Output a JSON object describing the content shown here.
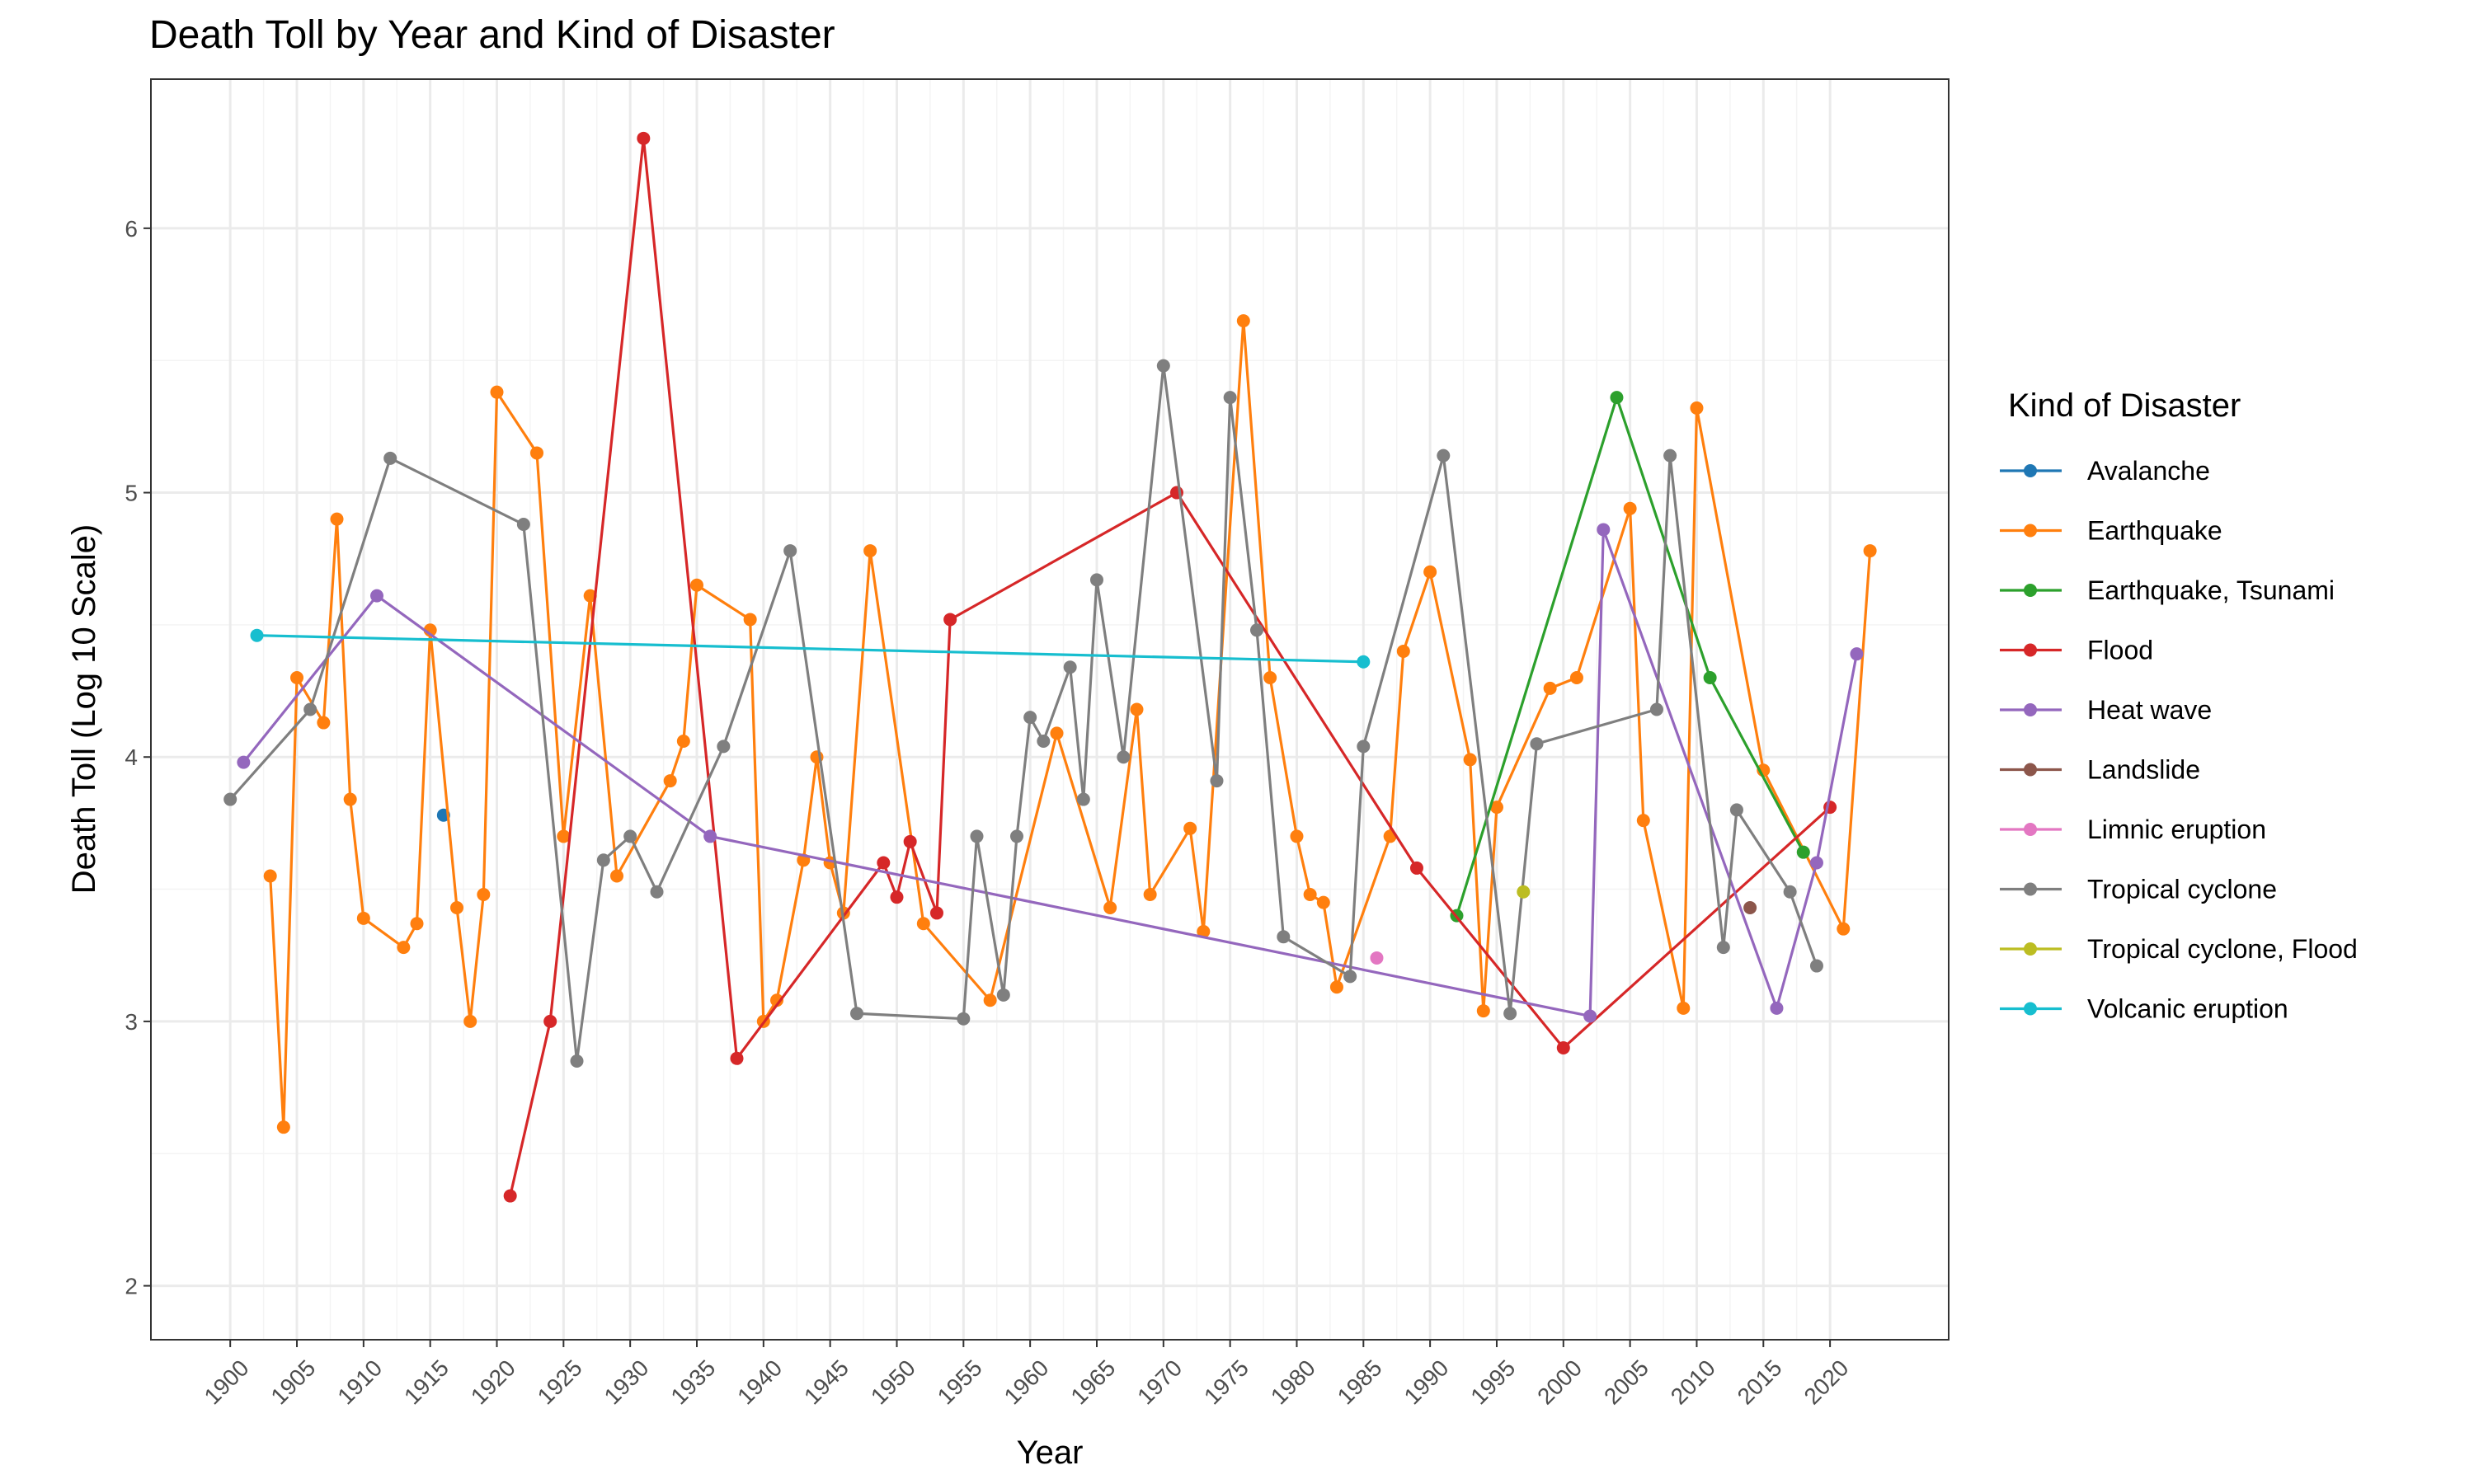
{
  "chart_data": {
    "type": "line",
    "title": "Death Toll by Year and Kind of Disaster",
    "x_label": "Year",
    "y_label": "Death Toll (Log 10 Scale)",
    "legend_title": "Kind of Disaster",
    "legend": "right",
    "grid": true,
    "xlim": [
      1894.05,
      2028.9
    ],
    "ylim": [
      1.796,
      6.564
    ],
    "xticks": [
      1900,
      1905,
      1910,
      1915,
      1920,
      1925,
      1930,
      1935,
      1940,
      1945,
      1950,
      1955,
      1960,
      1965,
      1970,
      1975,
      1980,
      1985,
      1990,
      1995,
      2000,
      2005,
      2010,
      2015,
      2020
    ],
    "yticks": [
      2,
      3,
      4,
      5,
      6
    ],
    "series": [
      {
        "name": "Avalanche",
        "color": "#1f77b4",
        "x": [
          1916
        ],
        "values": [
          3.78
        ]
      },
      {
        "name": "Earthquake",
        "color": "#ff7f0e",
        "x": [
          1903,
          1904,
          1905,
          1907,
          1908,
          1909,
          1910,
          1913,
          1914,
          1915,
          1917,
          1918,
          1919,
          1920,
          1923,
          1925,
          1927,
          1929,
          1933,
          1934,
          1935,
          1939,
          1940,
          1941,
          1943,
          1944,
          1945,
          1946,
          1948,
          1952,
          1957,
          1962,
          1966,
          1968,
          1969,
          1972,
          1973,
          1976,
          1978,
          1980,
          1981,
          1982,
          1983,
          1987,
          1988,
          1990,
          1993,
          1994,
          1995,
          1999,
          2001,
          2005,
          2006,
          2009,
          2010,
          2015,
          2021,
          2023
        ],
        "values": [
          3.55,
          2.6,
          4.3,
          4.13,
          4.9,
          3.84,
          3.39,
          3.28,
          3.37,
          4.48,
          3.43,
          3.0,
          3.48,
          5.38,
          5.15,
          3.7,
          4.61,
          3.55,
          3.91,
          4.06,
          4.65,
          4.52,
          3.0,
          3.08,
          3.61,
          4.0,
          3.6,
          3.41,
          4.78,
          3.37,
          3.08,
          4.09,
          3.43,
          4.18,
          3.48,
          3.73,
          3.34,
          5.65,
          4.3,
          3.7,
          3.48,
          3.45,
          3.13,
          3.7,
          4.4,
          4.7,
          3.99,
          3.04,
          3.81,
          4.26,
          4.3,
          4.94,
          3.76,
          3.05,
          5.32,
          3.95,
          3.35,
          4.78
        ]
      },
      {
        "name": "Earthquake, Tsunami",
        "color": "#2ca02c",
        "x": [
          1992,
          2004,
          2011,
          2018
        ],
        "values": [
          3.4,
          5.36,
          4.3,
          3.64
        ]
      },
      {
        "name": "Flood",
        "color": "#d62728",
        "x": [
          1921,
          1924,
          1931,
          1938,
          1949,
          1950,
          1951,
          1953,
          1954,
          1971,
          1989,
          2000,
          2020
        ],
        "values": [
          2.34,
          3.0,
          6.34,
          2.86,
          3.6,
          3.47,
          3.68,
          3.41,
          4.52,
          5.0,
          3.58,
          2.9,
          3.81
        ]
      },
      {
        "name": "Heat wave",
        "color": "#9467bd",
        "x": [
          1901,
          1911,
          1936,
          2002,
          2003,
          2016,
          2019,
          2022
        ],
        "values": [
          3.98,
          4.61,
          3.7,
          3.02,
          4.86,
          3.05,
          3.6,
          4.39
        ]
      },
      {
        "name": "Landslide",
        "color": "#8c564b",
        "x": [
          2014
        ],
        "values": [
          3.43
        ]
      },
      {
        "name": "Limnic eruption",
        "color": "#e377c2",
        "x": [
          1986
        ],
        "values": [
          3.24
        ]
      },
      {
        "name": "Tropical cyclone",
        "color": "#7f7f7f",
        "x": [
          1900,
          1906,
          1912,
          1922,
          1926,
          1928,
          1930,
          1932,
          1937,
          1942,
          1947,
          1955,
          1956,
          1958,
          1959,
          1960,
          1961,
          1963,
          1964,
          1965,
          1967,
          1970,
          1974,
          1975,
          1977,
          1979,
          1984,
          1985,
          1991,
          1996,
          1998,
          2007,
          2008,
          2012,
          2013,
          2017,
          2019
        ],
        "values": [
          3.84,
          4.18,
          5.13,
          4.88,
          2.85,
          3.61,
          3.7,
          3.49,
          4.04,
          4.78,
          3.03,
          3.01,
          3.7,
          3.1,
          3.7,
          4.15,
          4.06,
          4.34,
          3.84,
          4.67,
          4.0,
          5.48,
          3.91,
          5.36,
          4.48,
          3.32,
          3.17,
          4.04,
          5.14,
          3.03,
          4.05,
          4.18,
          5.14,
          3.28,
          3.8,
          3.49,
          3.21
        ]
      },
      {
        "name": "Tropical cyclone, Flood",
        "color": "#bcbd22",
        "x": [
          1997
        ],
        "values": [
          3.49
        ]
      },
      {
        "name": "Volcanic eruption",
        "color": "#17becf",
        "x": [
          1902,
          1985
        ],
        "values": [
          4.46,
          4.36
        ]
      }
    ]
  }
}
